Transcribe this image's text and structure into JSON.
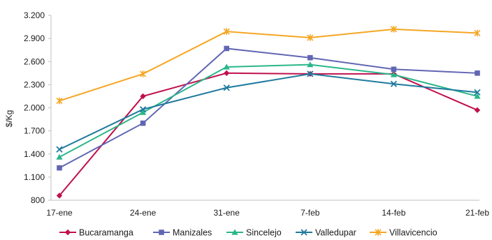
{
  "chart_data": {
    "type": "line",
    "title": "",
    "xlabel": "",
    "ylabel": "$/Kg",
    "ylim": [
      800,
      3200
    ],
    "yticks": [
      800,
      1100,
      1400,
      1700,
      2000,
      2300,
      2600,
      2900,
      3200
    ],
    "ytick_labels": [
      "800",
      "1.100",
      "1.400",
      "1.700",
      "2.000",
      "2.300",
      "2.600",
      "2.900",
      "3.200"
    ],
    "categories": [
      "17-ene",
      "24-ene",
      "31-ene",
      "7-feb",
      "14-feb",
      "21-feb"
    ],
    "grid": false,
    "legend_position": "bottom",
    "series": [
      {
        "name": "Bucaramanga",
        "color": "#C0104E",
        "marker": "diamond",
        "values": [
          860,
          2150,
          2450,
          2440,
          2440,
          1970
        ]
      },
      {
        "name": "Manizales",
        "color": "#6166B3",
        "marker": "square",
        "values": [
          1220,
          1800,
          2770,
          2650,
          2500,
          2450
        ]
      },
      {
        "name": "Sincelejo",
        "color": "#2BB68A",
        "marker": "triangle",
        "values": [
          1360,
          1940,
          2530,
          2560,
          2430,
          2150
        ]
      },
      {
        "name": "Valledupar",
        "color": "#1F7A9E",
        "marker": "x",
        "values": [
          1460,
          1980,
          2260,
          2440,
          2310,
          2200
        ]
      },
      {
        "name": "Villavicencio",
        "color": "#F5A623",
        "marker": "star",
        "values": [
          2090,
          2440,
          2990,
          2910,
          3020,
          2970
        ]
      }
    ]
  }
}
